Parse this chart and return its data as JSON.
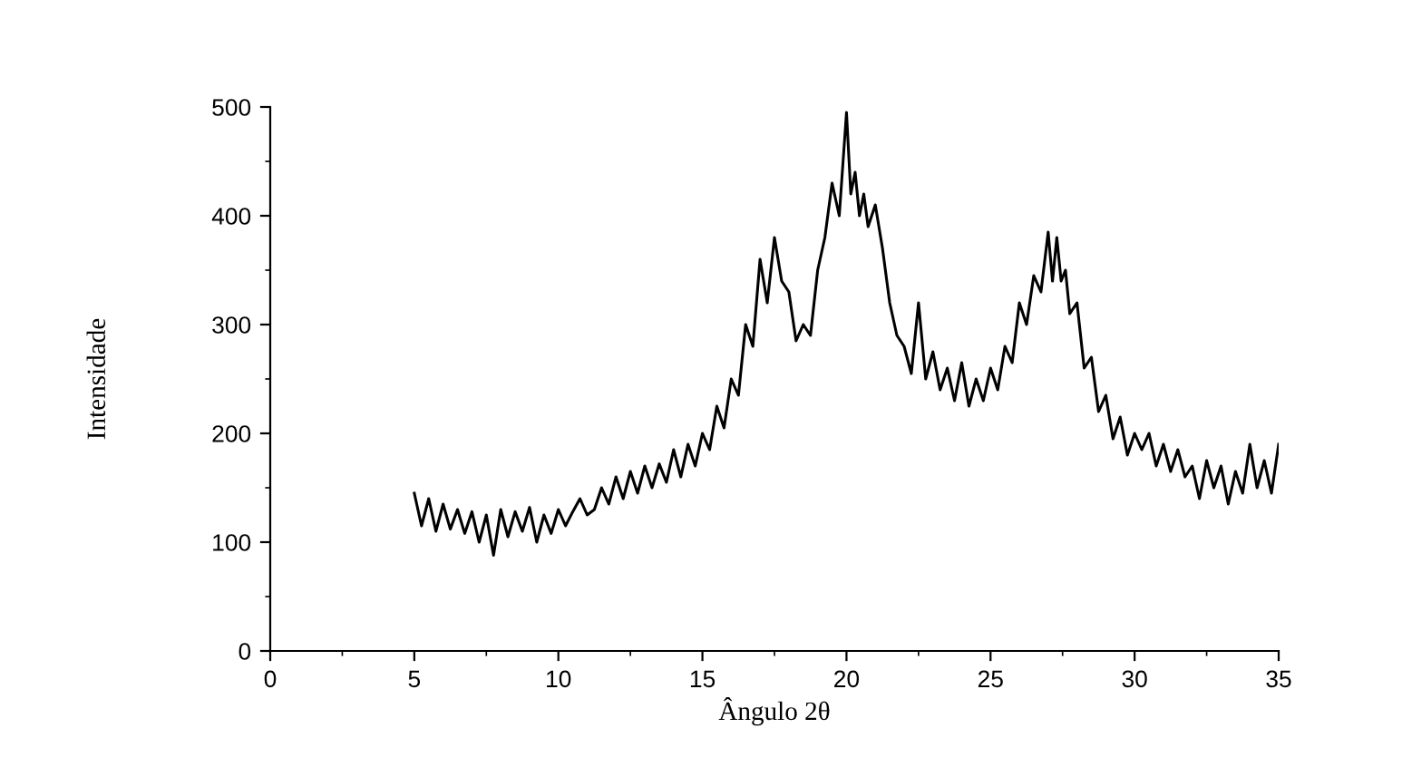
{
  "chart_data": {
    "type": "line",
    "xlabel": "Ângulo 2θ",
    "ylabel": "Intensidade",
    "xlim": [
      0,
      35
    ],
    "ylim": [
      0,
      500
    ],
    "xticks": [
      0,
      5,
      10,
      15,
      20,
      25,
      30,
      35
    ],
    "yticks": [
      0,
      100,
      200,
      300,
      400,
      500
    ],
    "grid": false,
    "legend": false,
    "marker": "none",
    "line_style": "solid",
    "series": [
      {
        "color": "#000000",
        "x": [
          5,
          5.25,
          5.5,
          5.75,
          6,
          6.25,
          6.5,
          6.75,
          7,
          7.25,
          7.5,
          7.75,
          8,
          8.25,
          8.5,
          8.75,
          9,
          9.25,
          9.5,
          9.75,
          10,
          10.25,
          10.5,
          10.75,
          11,
          11.25,
          11.5,
          11.75,
          12,
          12.25,
          12.5,
          12.75,
          13,
          13.25,
          13.5,
          13.75,
          14,
          14.25,
          14.5,
          14.75,
          15,
          15.25,
          15.5,
          15.75,
          16,
          16.25,
          16.5,
          16.75,
          17,
          17.25,
          17.5,
          17.75,
          18,
          18.25,
          18.5,
          18.75,
          19,
          19.25,
          19.5,
          19.75,
          20,
          20.15,
          20.3,
          20.45,
          20.6,
          20.75,
          21,
          21.25,
          21.5,
          21.75,
          22,
          22.25,
          22.5,
          22.75,
          23,
          23.25,
          23.5,
          23.75,
          24,
          24.25,
          24.5,
          24.75,
          25,
          25.25,
          25.5,
          25.75,
          26,
          26.25,
          26.5,
          26.75,
          27,
          27.15,
          27.3,
          27.45,
          27.6,
          27.75,
          28,
          28.25,
          28.5,
          28.75,
          29,
          29.25,
          29.5,
          29.75,
          30,
          30.25,
          30.5,
          30.75,
          31,
          31.25,
          31.5,
          31.75,
          32,
          32.25,
          32.5,
          32.75,
          33,
          33.25,
          33.5,
          33.75,
          34,
          34.25,
          34.5,
          34.75,
          35
        ],
        "values": [
          145,
          115,
          140,
          110,
          135,
          112,
          130,
          108,
          128,
          100,
          125,
          88,
          130,
          105,
          128,
          110,
          132,
          100,
          125,
          108,
          130,
          115,
          128,
          140,
          125,
          130,
          150,
          135,
          160,
          140,
          165,
          145,
          170,
          150,
          172,
          155,
          185,
          160,
          190,
          170,
          200,
          185,
          225,
          205,
          250,
          235,
          300,
          280,
          360,
          320,
          380,
          340,
          330,
          285,
          300,
          290,
          350,
          380,
          430,
          400,
          495,
          420,
          440,
          400,
          420,
          390,
          410,
          370,
          320,
          290,
          280,
          255,
          320,
          250,
          275,
          240,
          260,
          230,
          265,
          225,
          250,
          230,
          260,
          240,
          280,
          265,
          320,
          300,
          345,
          330,
          385,
          340,
          380,
          340,
          350,
          310,
          320,
          260,
          270,
          220,
          235,
          195,
          215,
          180,
          200,
          185,
          200,
          170,
          190,
          165,
          185,
          160,
          170,
          140,
          175,
          150,
          170,
          135,
          165,
          145,
          190,
          150,
          175,
          145,
          190
        ]
      }
    ]
  }
}
